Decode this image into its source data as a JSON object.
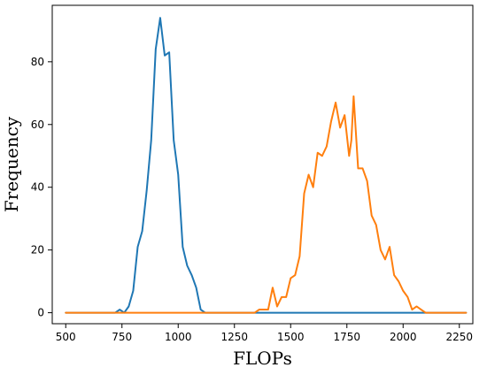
{
  "chart_data": {
    "type": "line",
    "xlabel": "FLOPs",
    "ylabel": "Frequency",
    "xlim": [
      440,
      2310
    ],
    "ylim": [
      -3.5,
      98
    ],
    "xticks": [
      500,
      750,
      1000,
      1250,
      1500,
      1750,
      2000,
      2250
    ],
    "yticks": [
      0,
      20,
      40,
      60,
      80
    ],
    "grid": false,
    "legend": "none",
    "series": [
      {
        "color": "#1f77b4",
        "x": [
          500,
          720,
          740,
          760,
          780,
          800,
          820,
          840,
          860,
          880,
          900,
          920,
          940,
          960,
          980,
          1000,
          1020,
          1040,
          1060,
          1080,
          1100,
          1120,
          1140,
          1500,
          2000,
          2280
        ],
        "y": [
          0,
          0,
          1,
          0,
          2,
          7,
          21,
          26,
          39,
          55,
          84,
          94,
          82,
          83,
          55,
          44,
          21,
          15,
          12,
          8,
          1,
          0,
          0,
          0,
          0,
          0
        ]
      },
      {
        "color": "#ff7f0e",
        "x": [
          500,
          1340,
          1360,
          1380,
          1400,
          1420,
          1440,
          1460,
          1480,
          1500,
          1520,
          1540,
          1560,
          1580,
          1600,
          1620,
          1640,
          1660,
          1680,
          1700,
          1720,
          1740,
          1760,
          1770,
          1780,
          1800,
          1820,
          1840,
          1860,
          1880,
          1900,
          1920,
          1940,
          1960,
          1980,
          2000,
          2020,
          2040,
          2060,
          2080,
          2100,
          2280
        ],
        "y": [
          0,
          0,
          1,
          1,
          1,
          8,
          2,
          5,
          5,
          11,
          12,
          18,
          38,
          44,
          40,
          51,
          50,
          53,
          61,
          67,
          59,
          63,
          50,
          55,
          69,
          46,
          46,
          42,
          31,
          28,
          20,
          17,
          21,
          12,
          10,
          7,
          5,
          1,
          2,
          1,
          0,
          0
        ]
      }
    ]
  }
}
